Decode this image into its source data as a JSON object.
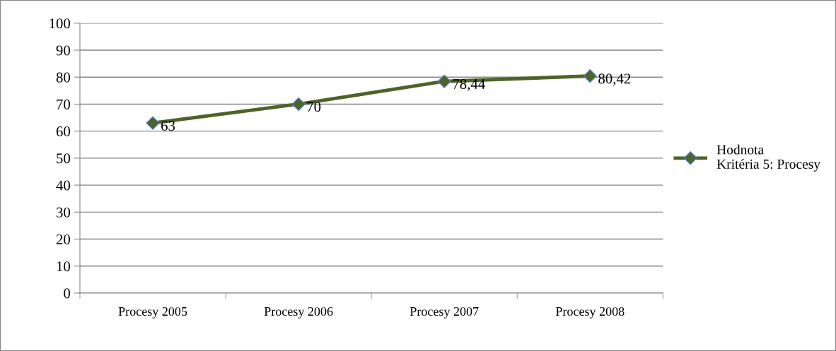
{
  "chart_data": {
    "type": "line",
    "categories": [
      "Procesy 2005",
      "Procesy 2006",
      "Procesy 2007",
      "Procesy 2008"
    ],
    "series": [
      {
        "name": "Hodnota\nKritéria 5: Procesy",
        "color": "#4f6228",
        "values": [
          63,
          70,
          78.44,
          80.42
        ],
        "value_labels": [
          "63",
          "70",
          "78,44",
          "80,42"
        ]
      }
    ],
    "ylim": [
      0,
      100
    ],
    "yticks": [
      0,
      10,
      20,
      30,
      40,
      50,
      60,
      70,
      80,
      90,
      100
    ],
    "grid": "y",
    "legend": "right",
    "marker": "diamond",
    "line_style": "solid"
  }
}
